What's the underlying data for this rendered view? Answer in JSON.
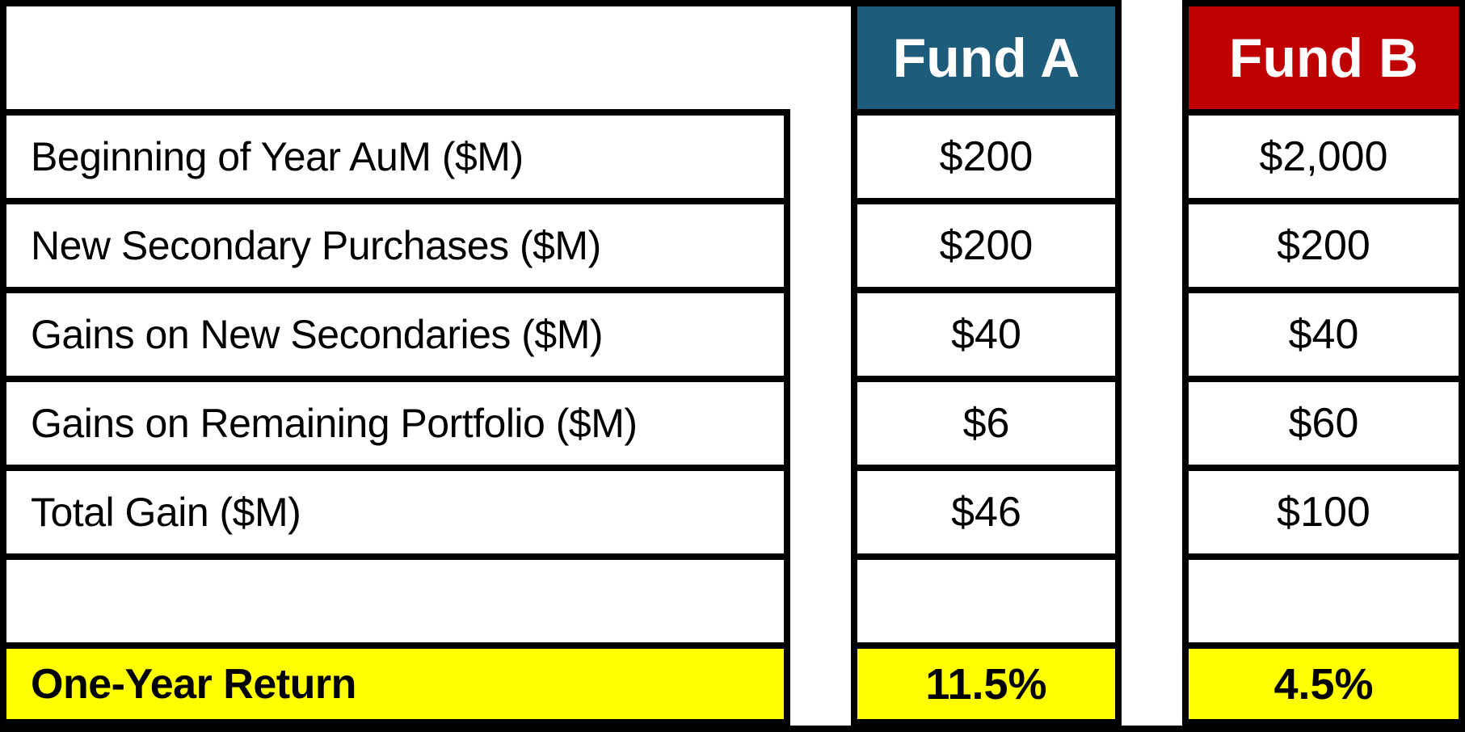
{
  "chart_data": {
    "type": "table",
    "columns": [
      "",
      "Fund A",
      "Fund B"
    ],
    "rows": [
      [
        "Beginning of Year AuM ($M)",
        "$200",
        "$2,000"
      ],
      [
        "New Secondary Purchases ($M)",
        "$200",
        "$200"
      ],
      [
        "Gains on New Secondaries ($M)",
        "$40",
        "$40"
      ],
      [
        "Gains on Remaining Portfolio ($M)",
        "$6",
        "$60"
      ],
      [
        "Total Gain ($M)",
        "$46",
        "$100"
      ],
      [
        "",
        "",
        ""
      ],
      [
        "One-Year Return",
        "11.5%",
        "4.5%"
      ]
    ]
  },
  "table": {
    "row_labels": [
      "Beginning of Year AuM ($M)",
      "New Secondary Purchases ($M)",
      "Gains on New Secondaries ($M)",
      "Gains on Remaining Portfolio ($M)",
      "Total Gain ($M)",
      "",
      "One-Year Return"
    ],
    "funds": [
      {
        "name": "Fund A",
        "header_color": "#1E5C7C",
        "values": [
          "$200",
          "$200",
          "$40",
          "$6",
          "$46"
        ],
        "one_year_return": "11.5%"
      },
      {
        "name": "Fund B",
        "header_color": "#C00000",
        "values": [
          "$2,000",
          "$200",
          "$40",
          "$60",
          "$100"
        ],
        "one_year_return": "4.5%"
      }
    ],
    "colors": {
      "highlight": "#FFFF00",
      "border": "#000000",
      "header_text": "#FFFFFF"
    }
  }
}
